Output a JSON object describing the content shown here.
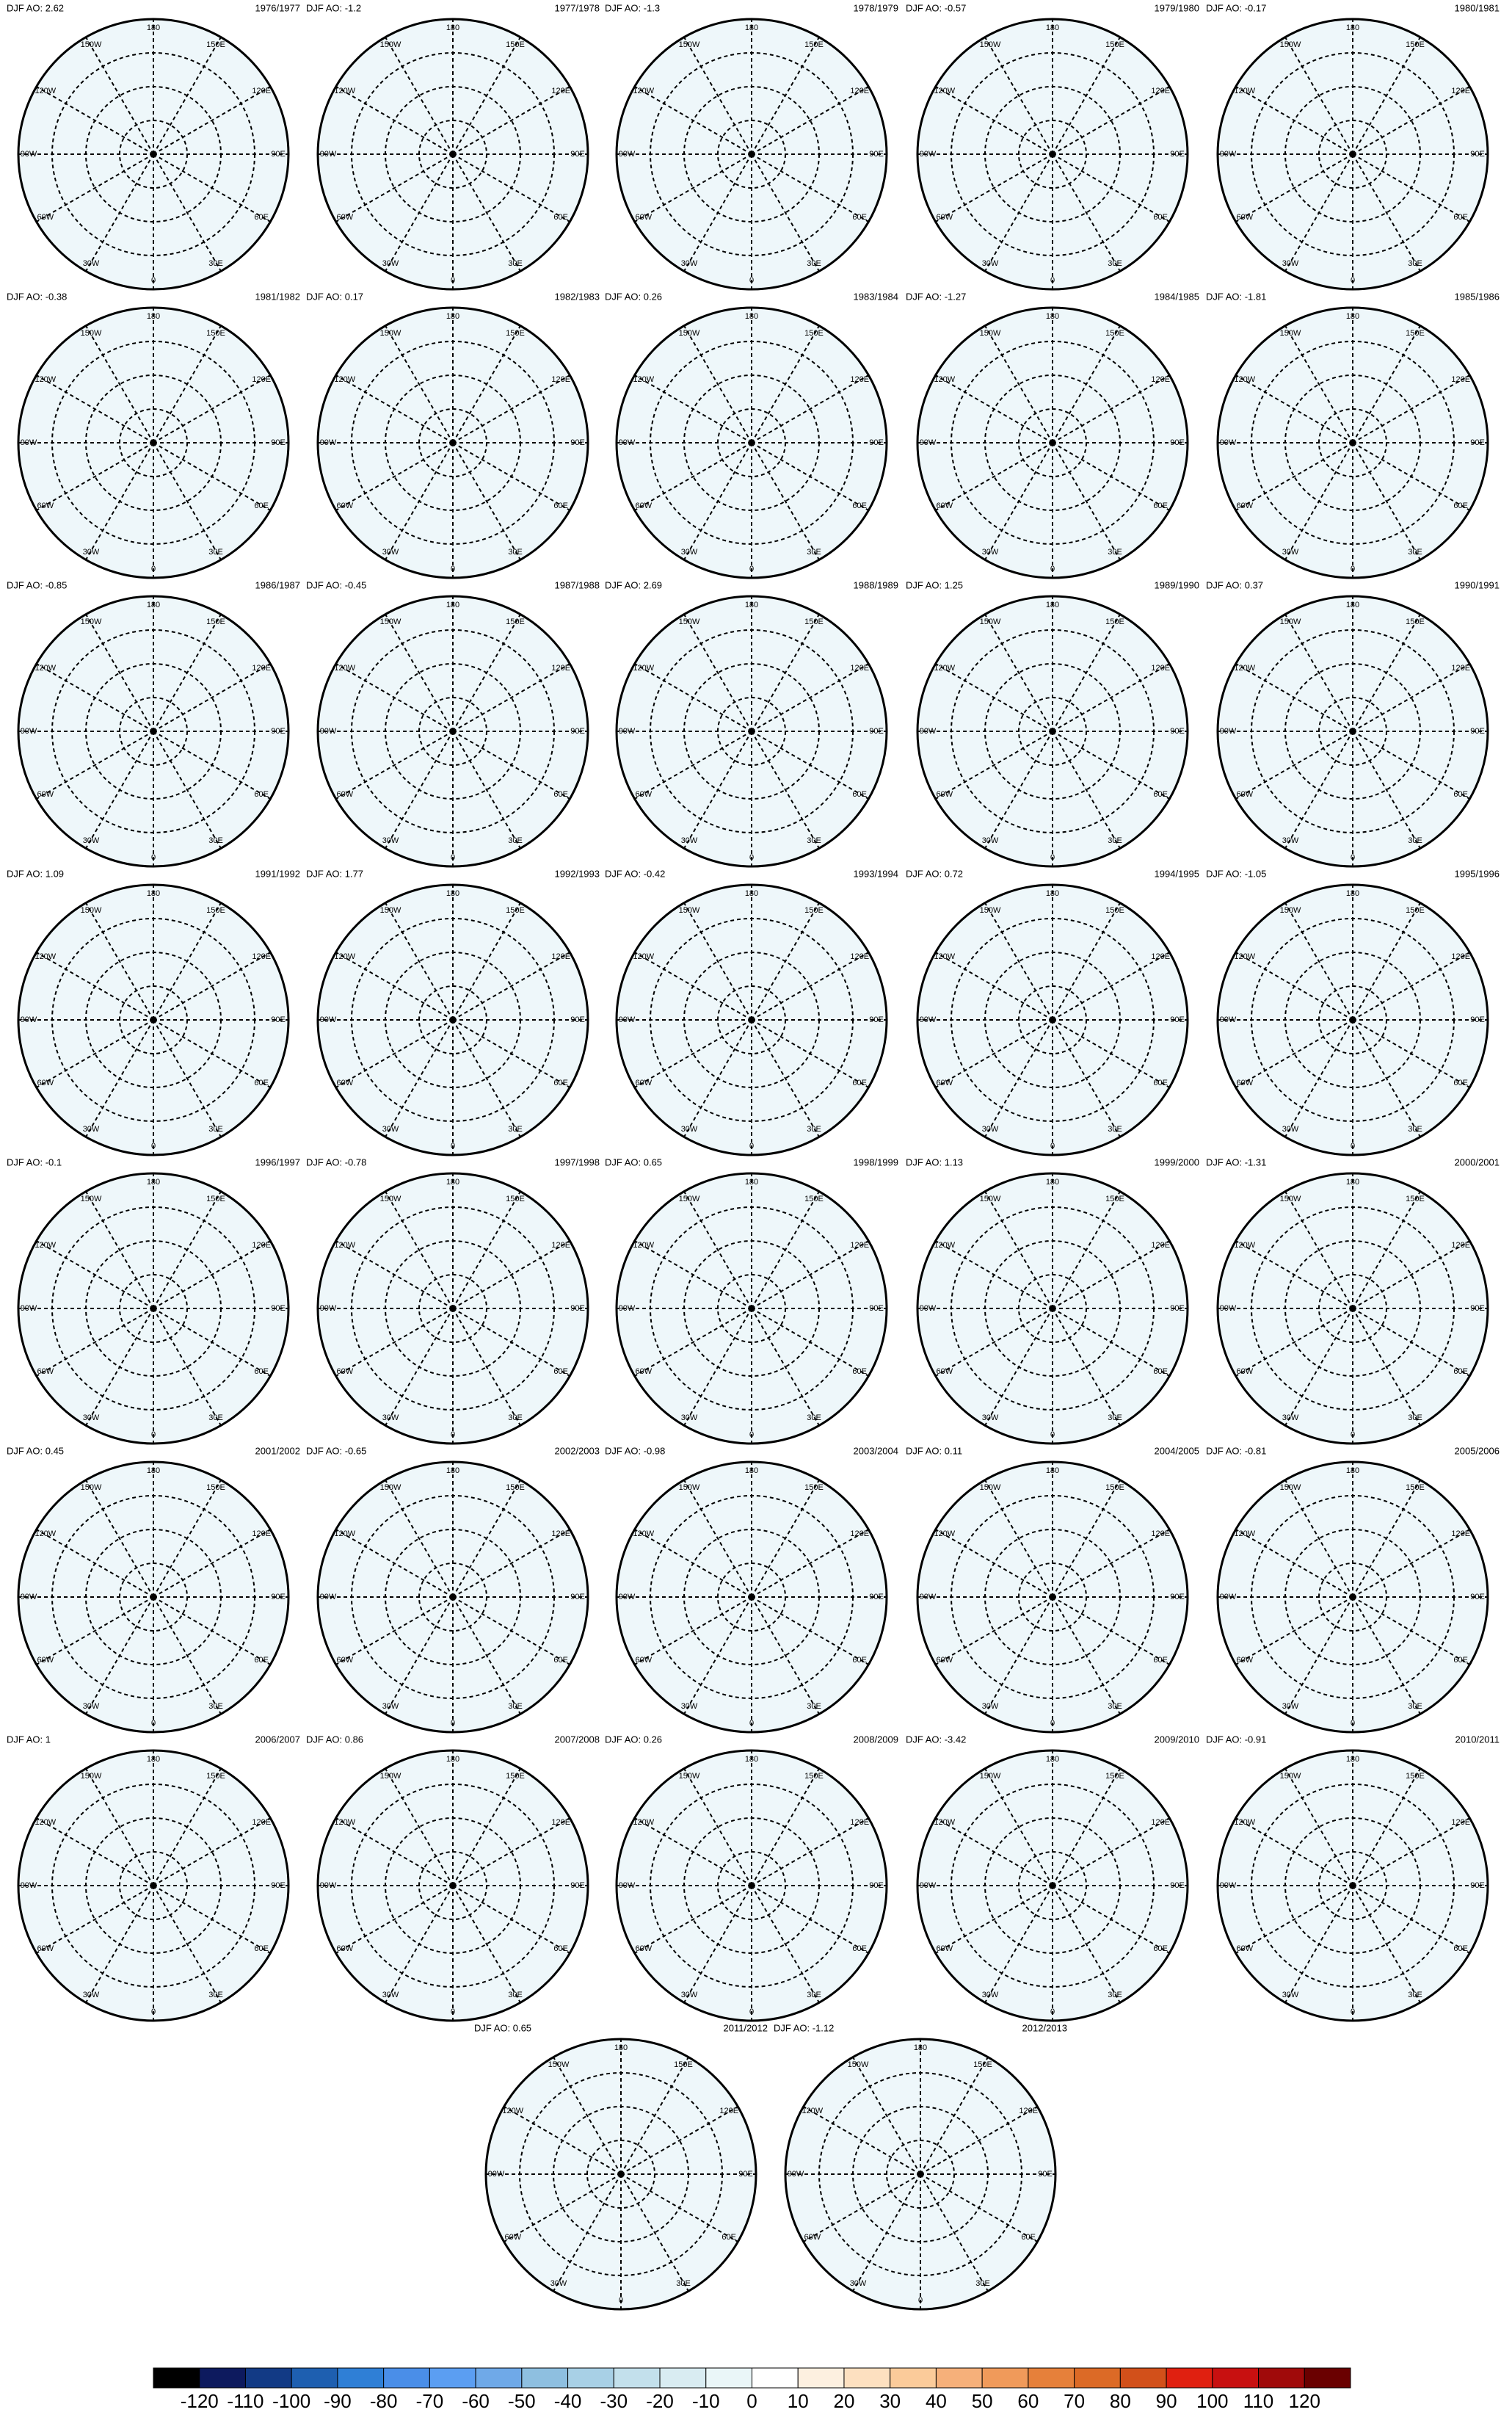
{
  "panels": [
    {
      "title": "DJF AO: 2.62",
      "season": "1976/1977"
    },
    {
      "title": "DJF AO: -1.2",
      "season": "1977/1978"
    },
    {
      "title": "DJF AO: -1.3",
      "season": "1978/1979"
    },
    {
      "title": "DJF AO: -0.57",
      "season": "1979/1980"
    },
    {
      "title": "DJF AO: -0.17",
      "season": "1980/1981"
    },
    {
      "title": "DJF AO: -0.38",
      "season": "1981/1982"
    },
    {
      "title": "DJF AO: 0.17",
      "season": "1982/1983"
    },
    {
      "title": "DJF AO: 0.26",
      "season": "1983/1984"
    },
    {
      "title": "DJF AO: -1.27",
      "season": "1984/1985"
    },
    {
      "title": "DJF AO: -1.81",
      "season": "1985/1986"
    },
    {
      "title": "DJF AO: -0.85",
      "season": "1986/1987"
    },
    {
      "title": "DJF AO: -0.45",
      "season": "1987/1988"
    },
    {
      "title": "DJF AO: 2.69",
      "season": "1988/1989"
    },
    {
      "title": "DJF AO: 1.25",
      "season": "1989/1990"
    },
    {
      "title": "DJF AO: 0.37",
      "season": "1990/1991"
    },
    {
      "title": "DJF AO: 1.09",
      "season": "1991/1992"
    },
    {
      "title": "DJF AO: 1.77",
      "season": "1992/1993"
    },
    {
      "title": "DJF AO: -0.42",
      "season": "1993/1994"
    },
    {
      "title": "DJF AO: 0.72",
      "season": "1994/1995"
    },
    {
      "title": "DJF AO: -1.05",
      "season": "1995/1996"
    },
    {
      "title": "DJF AO: -0.1",
      "season": "1996/1997"
    },
    {
      "title": "DJF AO: -0.78",
      "season": "1997/1998"
    },
    {
      "title": "DJF AO: 0.65",
      "season": "1998/1999"
    },
    {
      "title": "DJF AO: 1.13",
      "season": "1999/2000"
    },
    {
      "title": "DJF AO: -1.31",
      "season": "2000/2001"
    },
    {
      "title": "DJF AO: 0.45",
      "season": "2001/2002"
    },
    {
      "title": "DJF AO: -0.65",
      "season": "2002/2003"
    },
    {
      "title": "DJF AO: -0.98",
      "season": "2003/2004"
    },
    {
      "title": "DJF AO: 0.11",
      "season": "2004/2005"
    },
    {
      "title": "DJF AO: -0.81",
      "season": "2005/2006"
    },
    {
      "title": "DJF AO: 1",
      "season": "2006/2007"
    },
    {
      "title": "DJF AO: 0.86",
      "season": "2007/2008"
    },
    {
      "title": "DJF AO: 0.26",
      "season": "2008/2009"
    },
    {
      "title": "DJF AO: -3.42",
      "season": "2009/2010"
    },
    {
      "title": "DJF AO: -0.91",
      "season": "2010/2011"
    },
    {
      "title": "DJF AO: 0.65",
      "season": "2011/2012"
    },
    {
      "title": "DJF AO: -1.12",
      "season": "2012/2013"
    }
  ],
  "lon_labels": [
    "0",
    "30E",
    "60E",
    "90E",
    "120E",
    "150E",
    "180",
    "150W",
    "120W",
    "90W",
    "60W",
    "30W"
  ],
  "colorbar": {
    "ticks": [
      -120,
      -110,
      -100,
      -90,
      -80,
      -70,
      -60,
      -50,
      -40,
      -30,
      -20,
      -10,
      0,
      10,
      20,
      30,
      40,
      50,
      60,
      70,
      80,
      90,
      100,
      110,
      120
    ],
    "colors": [
      "#000000",
      "#0d1a5e",
      "#123a85",
      "#1e5fb0",
      "#2f7fd6",
      "#4a8ee8",
      "#5b9ef2",
      "#6fa9e8",
      "#8ebfe0",
      "#a8d0e6",
      "#c3e0ec",
      "#d9ecf2",
      "#eaf6f8",
      "#ffffff",
      "#fdf0e0",
      "#fde0c0",
      "#fbcb9a",
      "#f6b07a",
      "#f09a5a",
      "#e6803a",
      "#dc6a26",
      "#d2501a",
      "#e02010",
      "#c81010",
      "#a00a0a",
      "#6a0000"
    ]
  }
}
